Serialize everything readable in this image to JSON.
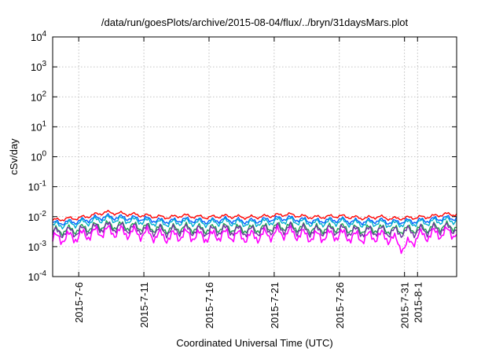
{
  "chart_data": {
    "type": "line",
    "title": "/data/run/goesPlots/archive/2015-08-04/flux/../bryn/31daysMars.plot",
    "xlabel": "Coordinated Universal Time (UTC)",
    "ylabel": "cSv/day",
    "yscale": "log",
    "ylim": [
      0.0001,
      10000
    ],
    "xlim": [
      "2015-07-04",
      "2015-08-04"
    ],
    "grid": true,
    "y_ticks": [
      {
        "value": 0.0001,
        "base": "10",
        "exp": "-4"
      },
      {
        "value": 0.001,
        "base": "10",
        "exp": "-3"
      },
      {
        "value": 0.01,
        "base": "10",
        "exp": "-2"
      },
      {
        "value": 0.1,
        "base": "10",
        "exp": "-1"
      },
      {
        "value": 1,
        "base": "10",
        "exp": "0"
      },
      {
        "value": 10,
        "base": "10",
        "exp": "1"
      },
      {
        "value": 100,
        "base": "10",
        "exp": "2"
      },
      {
        "value": 1000,
        "base": "10",
        "exp": "3"
      },
      {
        "value": 10000,
        "base": "10",
        "exp": "4"
      }
    ],
    "x_ticks": [
      {
        "label": "2015-7-6",
        "date": "2015-07-06"
      },
      {
        "label": "2015-7-11",
        "date": "2015-07-11"
      },
      {
        "label": "2015-7-16",
        "date": "2015-07-16"
      },
      {
        "label": "2015-7-21",
        "date": "2015-07-21"
      },
      {
        "label": "2015-7-26",
        "date": "2015-07-26"
      },
      {
        "label": "2015-7-31",
        "date": "2015-07-31"
      },
      {
        "label": "2015-8-1",
        "date": "2015-08-01"
      }
    ],
    "series": [
      {
        "color": "#ff0000",
        "x": [
          "2015-07-04",
          "2015-07-05",
          "2015-07-06",
          "2015-07-07",
          "2015-07-08",
          "2015-07-09",
          "2015-07-10",
          "2015-07-11",
          "2015-07-12",
          "2015-07-13",
          "2015-07-14",
          "2015-07-15",
          "2015-07-16",
          "2015-07-17",
          "2015-07-18",
          "2015-07-19",
          "2015-07-20",
          "2015-07-21",
          "2015-07-22",
          "2015-07-23",
          "2015-07-24",
          "2015-07-25",
          "2015-07-26",
          "2015-07-27",
          "2015-07-28",
          "2015-07-29",
          "2015-07-30",
          "2015-07-31",
          "2015-08-01",
          "2015-08-02",
          "2015-08-03",
          "2015-08-04"
        ],
        "values": [
          0.0075,
          0.0085,
          0.009,
          0.011,
          0.014,
          0.013,
          0.012,
          0.011,
          0.01,
          0.0095,
          0.011,
          0.01,
          0.0095,
          0.0105,
          0.01,
          0.0095,
          0.01,
          0.011,
          0.012,
          0.0105,
          0.0095,
          0.01,
          0.0105,
          0.0095,
          0.009,
          0.01,
          0.0085,
          0.009,
          0.0095,
          0.01,
          0.012,
          0.012
        ]
      },
      {
        "color": "#0060ff",
        "x": [
          "2015-07-04",
          "2015-07-05",
          "2015-07-06",
          "2015-07-07",
          "2015-07-08",
          "2015-07-09",
          "2015-07-10",
          "2015-07-11",
          "2015-07-12",
          "2015-07-13",
          "2015-07-14",
          "2015-07-15",
          "2015-07-16",
          "2015-07-17",
          "2015-07-18",
          "2015-07-19",
          "2015-07-20",
          "2015-07-21",
          "2015-07-22",
          "2015-07-23",
          "2015-07-24",
          "2015-07-25",
          "2015-07-26",
          "2015-07-27",
          "2015-07-28",
          "2015-07-29",
          "2015-07-30",
          "2015-07-31",
          "2015-08-01",
          "2015-08-02",
          "2015-08-03",
          "2015-08-04"
        ],
        "values": [
          0.006,
          0.0065,
          0.007,
          0.0085,
          0.01,
          0.0095,
          0.009,
          0.0085,
          0.0075,
          0.007,
          0.008,
          0.0075,
          0.007,
          0.008,
          0.0075,
          0.007,
          0.0075,
          0.0085,
          0.009,
          0.008,
          0.007,
          0.0075,
          0.008,
          0.007,
          0.0068,
          0.0075,
          0.0065,
          0.007,
          0.0072,
          0.0078,
          0.009,
          0.009
        ]
      },
      {
        "color": "#00b0d0",
        "x": [
          "2015-07-04",
          "2015-07-05",
          "2015-07-06",
          "2015-07-07",
          "2015-07-08",
          "2015-07-09",
          "2015-07-10",
          "2015-07-11",
          "2015-07-12",
          "2015-07-13",
          "2015-07-14",
          "2015-07-15",
          "2015-07-16",
          "2015-07-17",
          "2015-07-18",
          "2015-07-19",
          "2015-07-20",
          "2015-07-21",
          "2015-07-22",
          "2015-07-23",
          "2015-07-24",
          "2015-07-25",
          "2015-07-26",
          "2015-07-27",
          "2015-07-28",
          "2015-07-29",
          "2015-07-30",
          "2015-07-31",
          "2015-08-01",
          "2015-08-02",
          "2015-08-03",
          "2015-08-04"
        ],
        "values": [
          0.005,
          0.0055,
          0.006,
          0.007,
          0.0085,
          0.008,
          0.0075,
          0.007,
          0.0062,
          0.006,
          0.0068,
          0.0063,
          0.006,
          0.0068,
          0.0063,
          0.006,
          0.0063,
          0.007,
          0.0075,
          0.0068,
          0.006,
          0.0063,
          0.0068,
          0.006,
          0.0058,
          0.0063,
          0.0055,
          0.006,
          0.0062,
          0.0066,
          0.0075,
          0.0075
        ]
      },
      {
        "color": "#1fa050",
        "x": [
          "2015-07-04",
          "2015-07-05",
          "2015-07-06",
          "2015-07-07",
          "2015-07-08",
          "2015-07-09",
          "2015-07-10",
          "2015-07-11",
          "2015-07-12",
          "2015-07-13",
          "2015-07-14",
          "2015-07-15",
          "2015-07-16",
          "2015-07-17",
          "2015-07-18",
          "2015-07-19",
          "2015-07-20",
          "2015-07-21",
          "2015-07-22",
          "2015-07-23",
          "2015-07-24",
          "2015-07-25",
          "2015-07-26",
          "2015-07-27",
          "2015-07-28",
          "2015-07-29",
          "2015-07-30",
          "2015-07-31",
          "2015-08-01",
          "2015-08-02",
          "2015-08-03",
          "2015-08-04"
        ],
        "values": [
          0.0032,
          0.0035,
          0.0038,
          0.0045,
          0.0052,
          0.005,
          0.0047,
          0.0045,
          0.004,
          0.0038,
          0.0043,
          0.004,
          0.0038,
          0.0043,
          0.004,
          0.0038,
          0.004,
          0.0045,
          0.0048,
          0.0043,
          0.0038,
          0.004,
          0.0043,
          0.0038,
          0.0037,
          0.004,
          0.0035,
          0.0037,
          0.0039,
          0.0042,
          0.0047,
          0.0047
        ]
      },
      {
        "color": "#7030a0",
        "x": [
          "2015-07-04",
          "2015-07-05",
          "2015-07-06",
          "2015-07-07",
          "2015-07-08",
          "2015-07-09",
          "2015-07-10",
          "2015-07-11",
          "2015-07-12",
          "2015-07-13",
          "2015-07-14",
          "2015-07-15",
          "2015-07-16",
          "2015-07-17",
          "2015-07-18",
          "2015-07-19",
          "2015-07-20",
          "2015-07-21",
          "2015-07-22",
          "2015-07-23",
          "2015-07-24",
          "2015-07-25",
          "2015-07-26",
          "2015-07-27",
          "2015-07-28",
          "2015-07-29",
          "2015-07-30",
          "2015-07-31",
          "2015-08-01",
          "2015-08-02",
          "2015-08-03",
          "2015-08-04"
        ],
        "values": [
          0.0028,
          0.003,
          0.0032,
          0.0038,
          0.0045,
          0.0043,
          0.004,
          0.0038,
          0.0034,
          0.0032,
          0.0036,
          0.0034,
          0.0032,
          0.0036,
          0.0034,
          0.0032,
          0.0034,
          0.0038,
          0.0041,
          0.0036,
          0.0032,
          0.0034,
          0.0036,
          0.0032,
          0.0031,
          0.0034,
          0.003,
          0.0031,
          0.0033,
          0.0036,
          0.004,
          0.004
        ]
      },
      {
        "color": "#ff00ff",
        "x": [
          "2015-07-04",
          "2015-07-05",
          "2015-07-06",
          "2015-07-07",
          "2015-07-08",
          "2015-07-09",
          "2015-07-10",
          "2015-07-11",
          "2015-07-12",
          "2015-07-13",
          "2015-07-14",
          "2015-07-15",
          "2015-07-16",
          "2015-07-17",
          "2015-07-18",
          "2015-07-19",
          "2015-07-20",
          "2015-07-21",
          "2015-07-22",
          "2015-07-23",
          "2015-07-24",
          "2015-07-25",
          "2015-07-26",
          "2015-07-27",
          "2015-07-28",
          "2015-07-29",
          "2015-07-30",
          "2015-07-31",
          "2015-08-01",
          "2015-08-02",
          "2015-08-03",
          "2015-08-04"
        ],
        "values": [
          0.0018,
          0.002,
          0.0022,
          0.0027,
          0.0033,
          0.0031,
          0.0029,
          0.0027,
          0.0023,
          0.0021,
          0.0025,
          0.0023,
          0.0021,
          0.0025,
          0.0023,
          0.0021,
          0.0023,
          0.0027,
          0.003,
          0.0025,
          0.0021,
          0.0023,
          0.0025,
          0.0021,
          0.002,
          0.0023,
          0.0019,
          0.0009,
          0.0022,
          0.0025,
          0.0029,
          0.0029
        ]
      }
    ]
  }
}
